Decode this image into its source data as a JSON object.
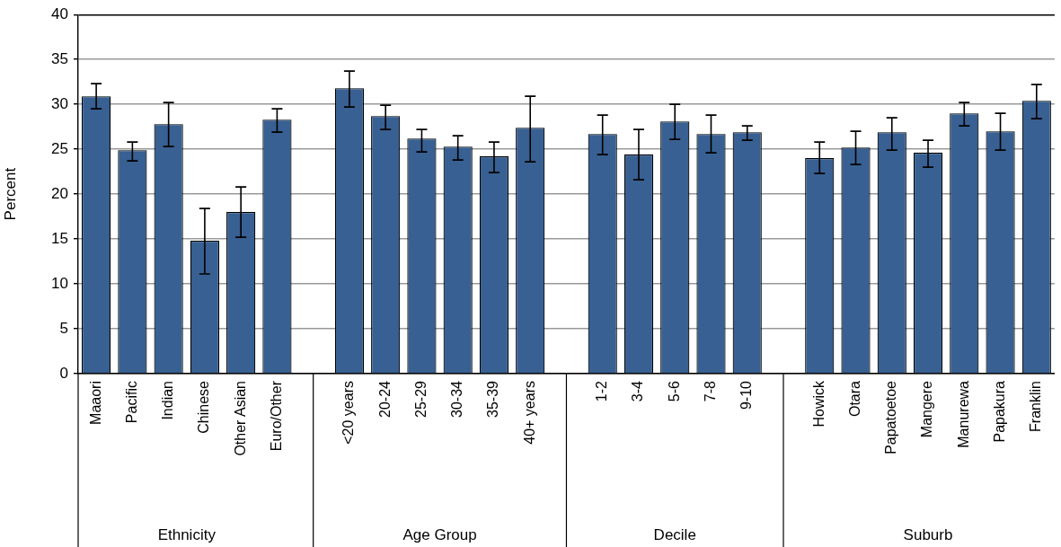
{
  "chart_data": {
    "type": "bar",
    "ylabel": "Percent",
    "categories": [
      "Maaori",
      "Pacific",
      "Indian",
      "Chinese",
      "Other Asian",
      "Euro/Other",
      null,
      "<20 years",
      "20-24",
      "25-29",
      "30-34",
      "35-39",
      "40+ years",
      null,
      "1-2",
      "3-4",
      "5-6",
      "7-8",
      "9-10",
      null,
      "Howick",
      "Otara",
      "Papatoetoe",
      "Mangere",
      "Manurewa",
      "Papakura",
      "Franklin"
    ],
    "values": [
      30.9,
      24.9,
      27.8,
      14.8,
      18.0,
      28.3,
      null,
      31.8,
      28.7,
      26.2,
      25.3,
      24.2,
      27.4,
      null,
      26.7,
      24.4,
      28.1,
      26.7,
      26.9,
      null,
      24.0,
      25.2,
      26.9,
      24.6,
      29.0,
      27.0,
      30.4
    ],
    "errors": [
      [
        29.5,
        32.3
      ],
      [
        23.7,
        25.8
      ],
      [
        25.3,
        30.2
      ],
      [
        11.1,
        18.4
      ],
      [
        15.2,
        20.8
      ],
      [
        26.9,
        29.5
      ],
      null,
      [
        29.7,
        33.7
      ],
      [
        27.2,
        29.9
      ],
      [
        24.7,
        27.2
      ],
      [
        23.8,
        26.5
      ],
      [
        22.4,
        25.8
      ],
      [
        23.6,
        30.9
      ],
      null,
      [
        24.4,
        28.8
      ],
      [
        21.6,
        27.2
      ],
      [
        26.1,
        30.0
      ],
      [
        24.6,
        28.8
      ],
      [
        26.0,
        27.6
      ],
      null,
      [
        22.3,
        25.8
      ],
      [
        23.3,
        27.0
      ],
      [
        24.9,
        28.5
      ],
      [
        23.0,
        26.0
      ],
      [
        27.6,
        30.2
      ],
      [
        24.9,
        29.0
      ],
      [
        28.4,
        32.2
      ]
    ],
    "color": "#386092",
    "ylim": [
      0,
      40
    ],
    "yticks": [
      0,
      5,
      10,
      15,
      20,
      25,
      30,
      35,
      40
    ],
    "grid": "y",
    "legend": false,
    "annotations": [
      "Ethnicity",
      "Age Group",
      "Decile",
      "Suburb"
    ]
  }
}
